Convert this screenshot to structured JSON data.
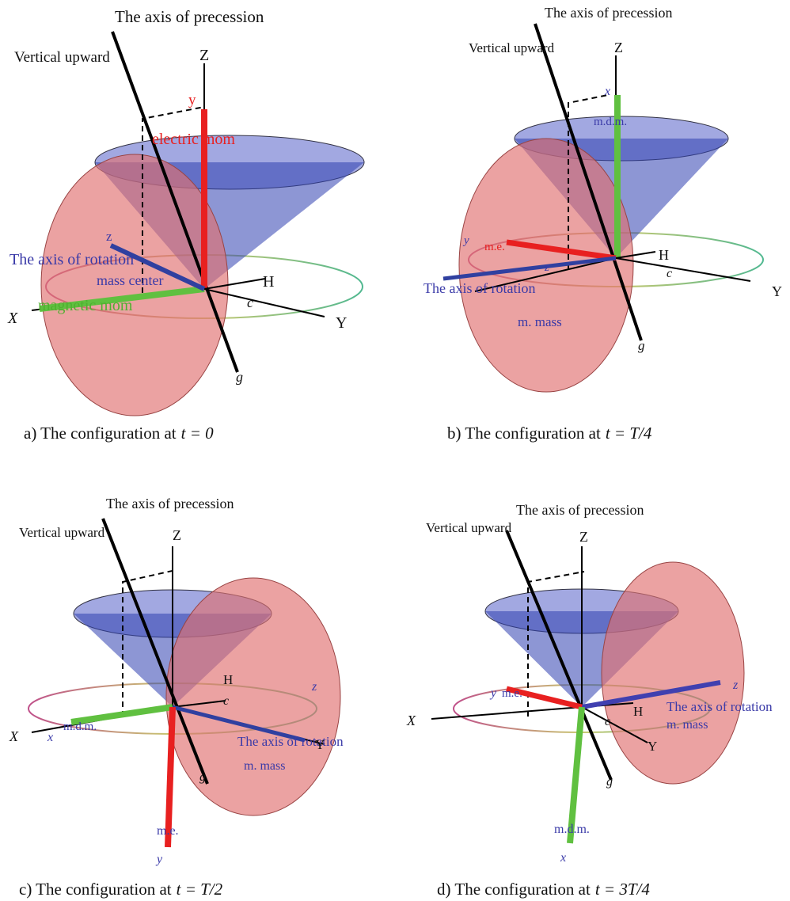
{
  "panels": [
    {
      "labels": [
        "The axis of precession",
        "Vertical upward",
        "Z",
        "y",
        "electric mom",
        "z",
        "The axis of rotation",
        "mass center",
        "magnetic mom",
        "X",
        "H",
        "c",
        "Y",
        "g"
      ],
      "caption": {
        "text": "a) The configuration at",
        "math": "t = 0"
      }
    },
    {
      "labels": [
        "The axis of precession",
        "Vertical upward",
        "Z",
        "x",
        "m.d.m.",
        "y",
        "m.e.",
        "z",
        "The axis of rotation",
        "H",
        "c",
        "Y",
        "m. mass",
        "g"
      ],
      "caption": {
        "text": "b) The configuration at",
        "math": "t = T/4"
      }
    },
    {
      "labels": [
        "The axis of precession",
        "Vertical upward",
        "Z",
        "H",
        "c",
        "z",
        "X",
        "x",
        "m.d.m.",
        "The axis of rotation",
        "Y",
        "m. mass",
        "g",
        "m.e.",
        "y"
      ],
      "caption": {
        "text": "c) The configuration at",
        "math": "t = T/2"
      }
    },
    {
      "labels": [
        "The axis of precession",
        "Vertical upward",
        "Z",
        "z",
        "y",
        "m.e.",
        "The axis of rotation",
        "m. mass",
        "H",
        "c",
        "X",
        "Y",
        "g",
        "m.d.m.",
        "x"
      ],
      "caption": {
        "text": "d) The configuration at",
        "math": "t = 3T/4"
      }
    }
  ]
}
